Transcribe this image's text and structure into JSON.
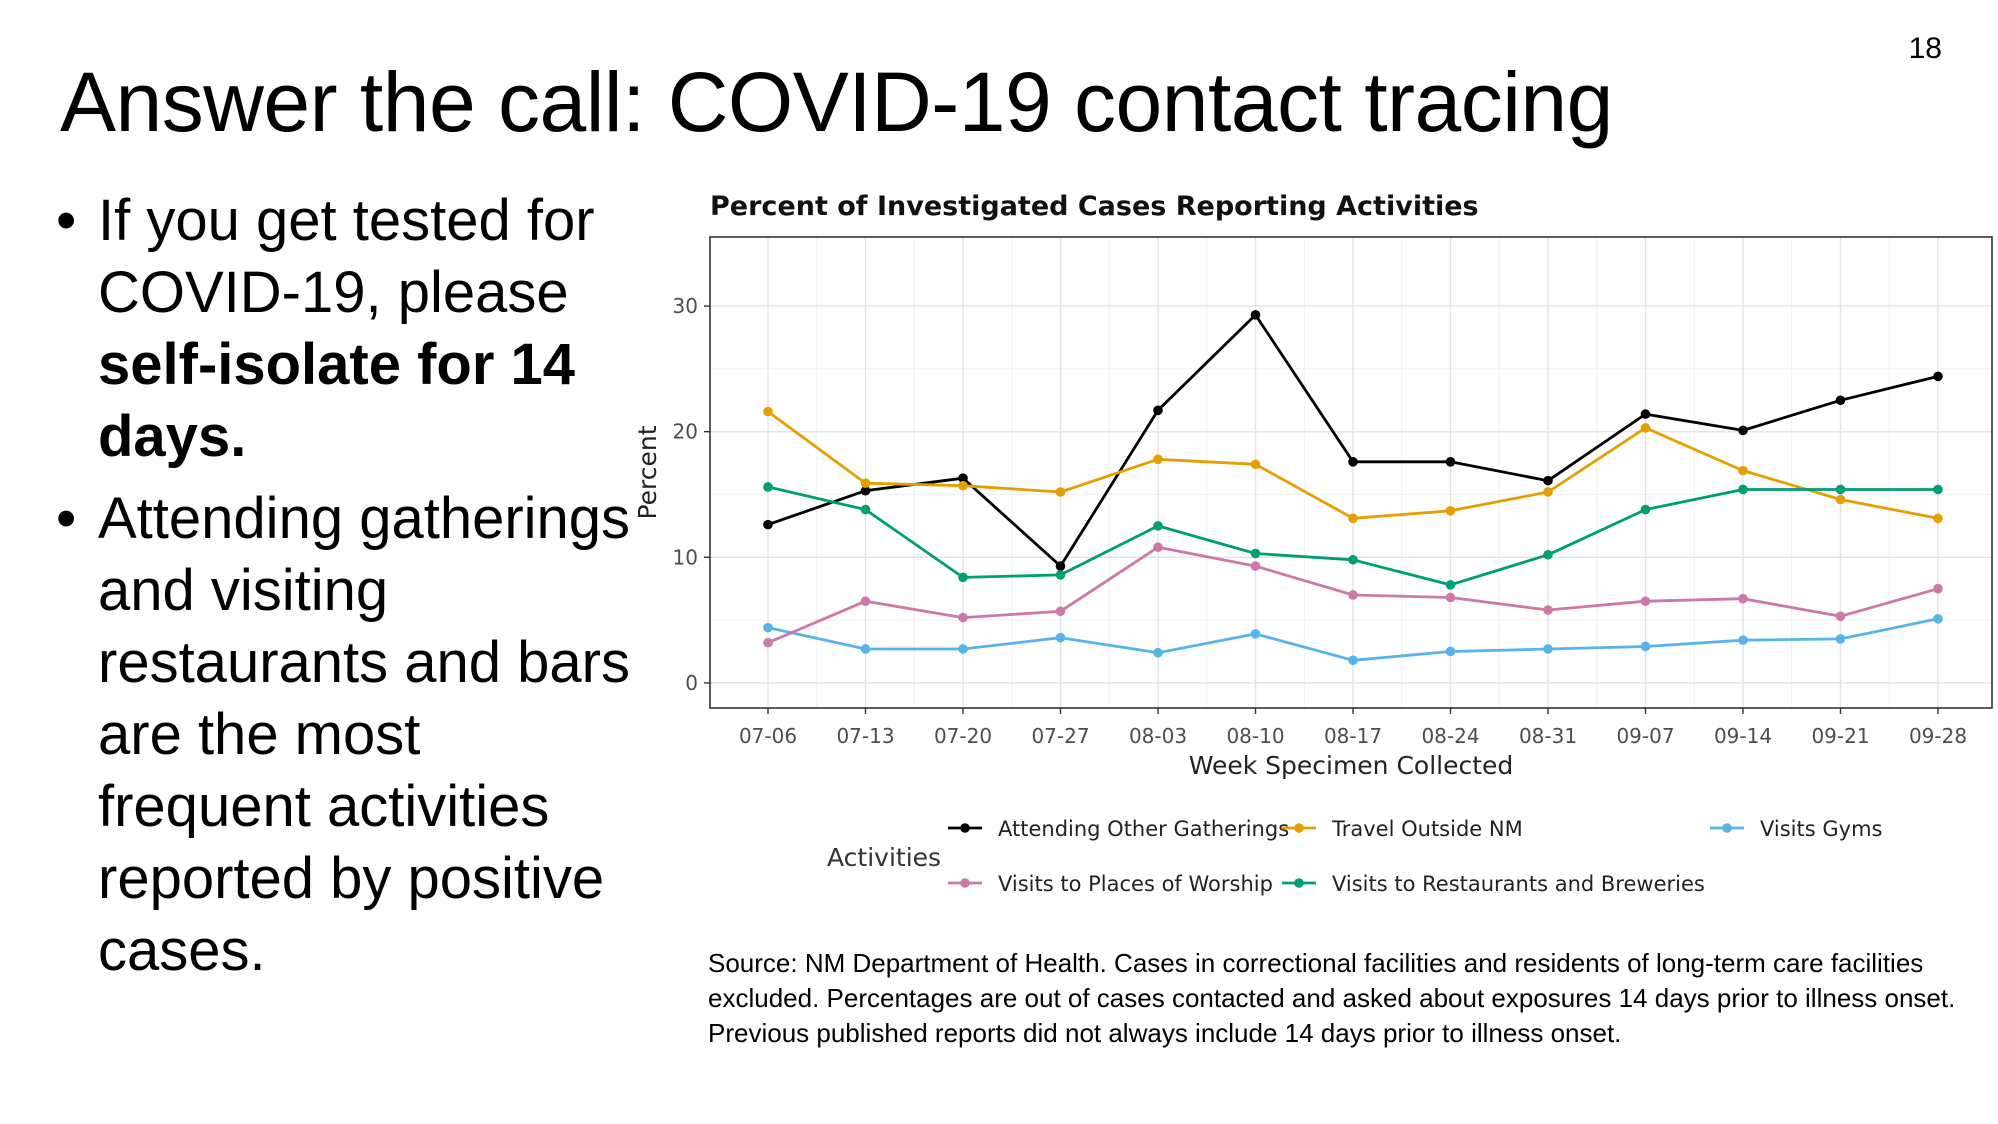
{
  "slide": {
    "number": "18",
    "title": "Answer the call: COVID-19 contact tracing",
    "bullet1": {
      "pre": "If you get tested for COVID-19, please ",
      "bold": "self-isolate for 14 days."
    },
    "bullet2": "Attending gatherings and visiting restaurants and bars are the most frequent activities reported by positive cases.",
    "source": "Source: NM Department of Health. Cases in correctional facilities and residents of long-term care facilities excluded. Percentages are out of cases contacted and asked about exposures 14 days prior to illness onset. Previous published reports did not always include 14 days prior to illness onset."
  },
  "chart_data": {
    "type": "line",
    "title": "Percent of Investigated Cases Reporting Activities",
    "xlabel": "Week Specimen Collected",
    "ylabel": "Percent",
    "categories": [
      "07-06",
      "07-13",
      "07-20",
      "07-27",
      "08-03",
      "08-10",
      "08-17",
      "08-24",
      "08-31",
      "09-07",
      "09-14",
      "09-21",
      "09-28"
    ],
    "ylim": [
      -2,
      35.5
    ],
    "yticks": [
      0,
      10,
      20,
      30
    ],
    "grid": true,
    "legend_title": "Activities",
    "legend_position": "bottom",
    "series": [
      {
        "name": "Attending Other Gatherings",
        "color": "#000000",
        "values": [
          12.6,
          15.3,
          16.3,
          9.3,
          21.7,
          29.3,
          17.6,
          17.6,
          16.1,
          21.4,
          20.1,
          22.5,
          24.4
        ]
      },
      {
        "name": "Travel Outside NM",
        "color": "#E69F00",
        "values": [
          21.6,
          15.9,
          15.7,
          15.2,
          17.8,
          17.4,
          13.1,
          13.7,
          15.2,
          20.3,
          16.9,
          14.6,
          13.1
        ]
      },
      {
        "name": "Visits Gyms",
        "color": "#56B4E9",
        "values": [
          4.4,
          2.7,
          2.7,
          3.6,
          2.4,
          3.9,
          1.8,
          2.5,
          2.7,
          2.9,
          3.4,
          3.5,
          5.1
        ]
      },
      {
        "name": "Visits to Places of Worship",
        "color": "#CC79A7",
        "values": [
          3.2,
          6.5,
          5.2,
          5.7,
          10.8,
          9.3,
          7.0,
          6.8,
          5.8,
          6.5,
          6.7,
          5.3,
          7.5
        ]
      },
      {
        "name": "Visits to Restaurants and Breweries",
        "color": "#009E73",
        "values": [
          15.6,
          13.8,
          8.4,
          8.6,
          12.5,
          10.3,
          9.8,
          7.8,
          10.2,
          13.8,
          15.4,
          15.4,
          15.4
        ]
      }
    ]
  }
}
